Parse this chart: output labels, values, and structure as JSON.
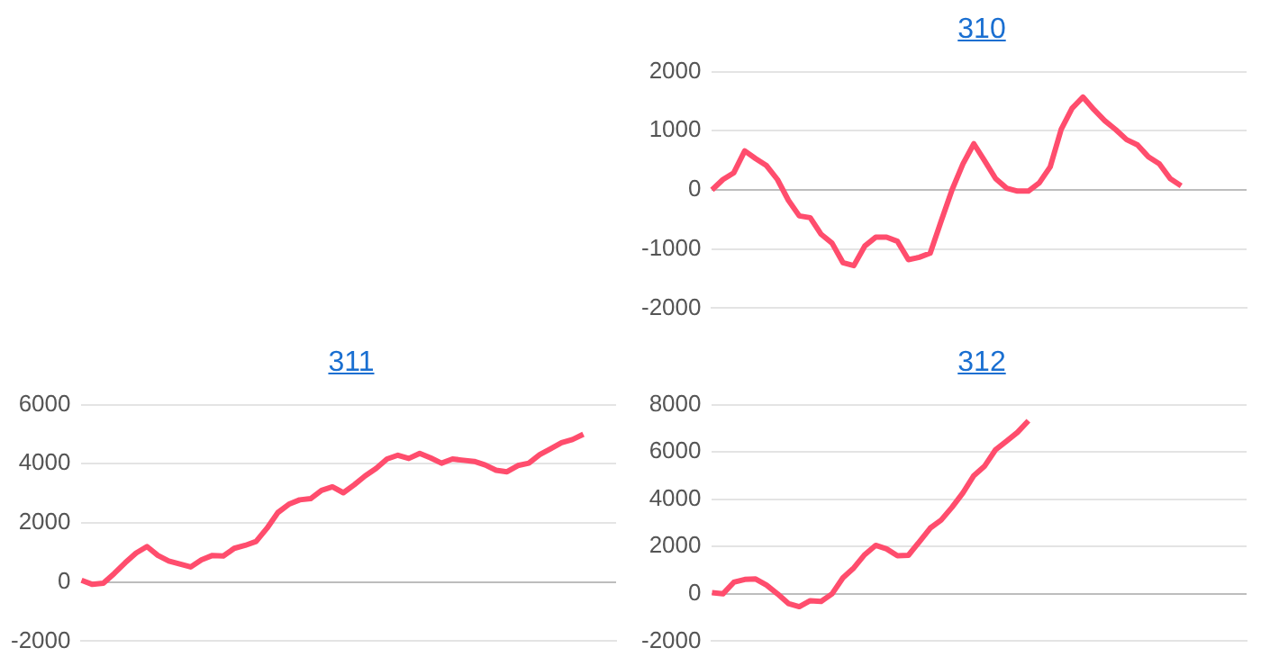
{
  "chart_data": [
    {
      "type": "line",
      "title": "310",
      "categories": [
        null,
        null,
        null,
        null,
        null,
        null,
        null,
        null,
        null,
        null,
        null,
        null,
        null,
        null,
        null,
        null,
        null,
        null,
        null,
        null,
        null,
        null,
        null,
        null,
        null,
        null,
        null,
        null,
        null,
        null,
        null,
        null,
        null,
        null,
        null,
        null,
        null,
        null,
        null,
        null,
        null,
        null,
        null,
        null,
        null,
        null,
        null,
        null,
        null,
        null
      ],
      "series": [
        {
          "color": "#ff4d6d",
          "values": [
            0,
            175,
            290,
            660,
            530,
            410,
            175,
            -175,
            -440,
            -470,
            -750,
            -900,
            -1230,
            -1280,
            -950,
            -800,
            -800,
            -870,
            -1180,
            -1140,
            -1070,
            -530,
            0,
            440,
            780,
            490,
            190,
            30,
            -20,
            -20,
            120,
            390,
            1020,
            1380,
            1570,
            1360,
            1170,
            1020,
            850,
            760,
            560,
            440,
            190,
            70,
            null,
            null,
            null,
            null,
            null,
            null
          ]
        }
      ],
      "ylim": [
        -2000,
        2000
      ],
      "yticks": [
        -2000,
        -1000,
        0,
        1000,
        2000
      ],
      "grid": "y",
      "tick_labels": "y",
      "marker": "none",
      "legend": false
    },
    {
      "type": "line",
      "title": "311",
      "categories": [
        null,
        null,
        null,
        null,
        null,
        null,
        null,
        null,
        null,
        null,
        null,
        null,
        null,
        null,
        null,
        null,
        null,
        null,
        null,
        null,
        null,
        null,
        null,
        null,
        null,
        null,
        null,
        null,
        null,
        null,
        null,
        null,
        null,
        null,
        null,
        null,
        null,
        null,
        null,
        null,
        null,
        null,
        null,
        null,
        null,
        null,
        null,
        null,
        null,
        null
      ],
      "series": [
        {
          "color": "#ff4d6d",
          "values": [
            60,
            -80,
            -40,
            290,
            650,
            980,
            1200,
            900,
            710,
            610,
            510,
            750,
            900,
            880,
            1140,
            1240,
            1370,
            1820,
            2350,
            2630,
            2780,
            2820,
            3100,
            3220,
            3020,
            3290,
            3590,
            3840,
            4160,
            4290,
            4180,
            4350,
            4200,
            4020,
            4160,
            4120,
            4080,
            3960,
            3780,
            3730,
            3940,
            4020,
            4310,
            4510,
            4710,
            4820,
            5000,
            null,
            null,
            null
          ]
        }
      ],
      "ylim": [
        -2000,
        6000
      ],
      "yticks": [
        -2000,
        0,
        2000,
        4000,
        6000
      ],
      "grid": "y",
      "tick_labels": "y",
      "marker": "none",
      "legend": false
    },
    {
      "type": "line",
      "title": "312",
      "categories": [
        null,
        null,
        null,
        null,
        null,
        null,
        null,
        null,
        null,
        null,
        null,
        null,
        null,
        null,
        null,
        null,
        null,
        null,
        null,
        null,
        null,
        null,
        null,
        null,
        null,
        null,
        null,
        null,
        null,
        null,
        null,
        null,
        null,
        null,
        null,
        null,
        null,
        null,
        null,
        null,
        null,
        null,
        null,
        null,
        null,
        null,
        null,
        null,
        null,
        null
      ],
      "series": [
        {
          "color": "#ff4d6d",
          "values": [
            50,
            0,
            490,
            610,
            630,
            370,
            0,
            -410,
            -540,
            -290,
            -320,
            0,
            680,
            1100,
            1660,
            2050,
            1900,
            1610,
            1630,
            2200,
            2780,
            3120,
            3660,
            4270,
            5000,
            5410,
            6100,
            6460,
            6830,
            7320,
            null,
            null,
            null,
            null,
            null,
            null,
            null,
            null,
            null,
            null,
            null,
            null,
            null,
            null,
            null,
            null,
            null,
            null,
            null,
            null
          ]
        }
      ],
      "ylim": [
        -2000,
        8000
      ],
      "yticks": [
        -2000,
        0,
        2000,
        4000,
        6000,
        8000
      ],
      "grid": "y",
      "tick_labels": "y",
      "marker": "none",
      "legend": false
    }
  ]
}
